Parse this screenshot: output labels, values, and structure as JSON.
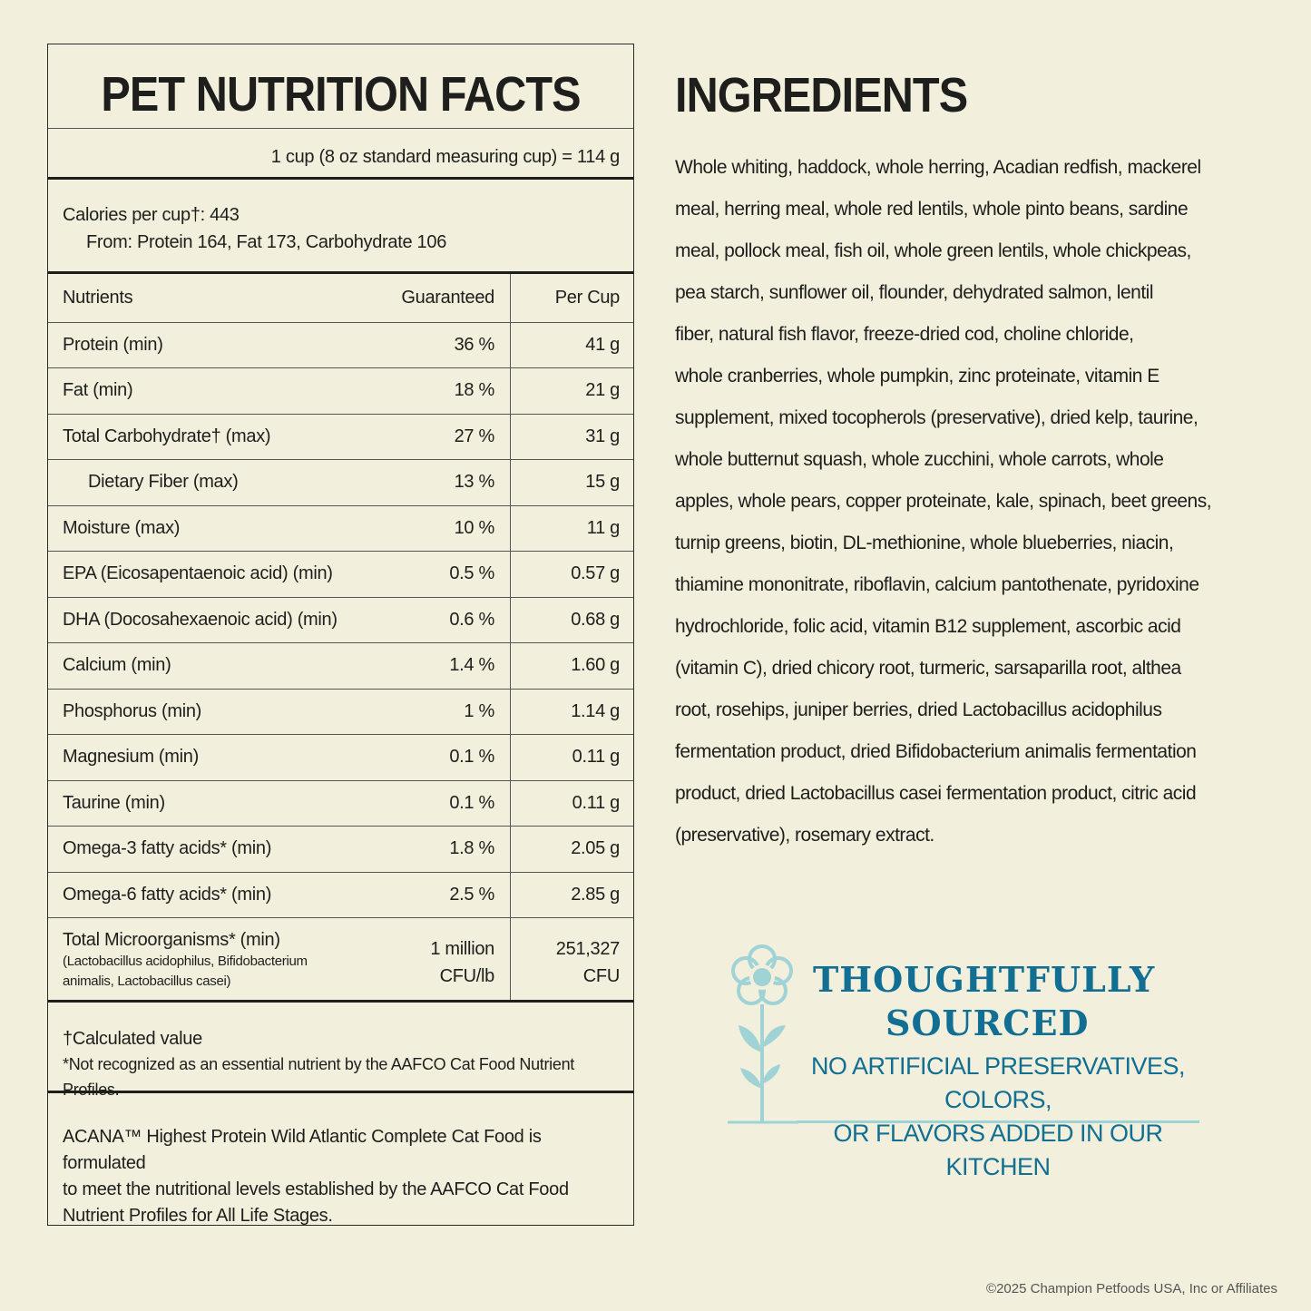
{
  "nutrition": {
    "title": "PET NUTRITION FACTS",
    "serving": "1 cup (8 oz standard measuring cup) = 114 g",
    "calories": "Calories per cup†:  443",
    "calories_from": "From: Protein 164, Fat 173, Carbohydrate 106",
    "headers": {
      "nutrient": "Nutrients",
      "guaranteed": "Guaranteed",
      "per_cup": "Per Cup"
    },
    "rows": [
      {
        "name": "Protein (min)",
        "guaranteed": "36 %",
        "per_cup": "41 g"
      },
      {
        "name": "Fat (min)",
        "guaranteed": "18 %",
        "per_cup": "21 g"
      },
      {
        "name": "Total Carbohydrate† (max)",
        "guaranteed": "27 %",
        "per_cup": "31 g"
      },
      {
        "name": "Dietary Fiber (max)",
        "guaranteed": "13 %",
        "per_cup": "15 g",
        "indent": true
      },
      {
        "name": "Moisture (max)",
        "guaranteed": "10 %",
        "per_cup": "11 g"
      },
      {
        "name": "EPA (Eicosapentaenoic acid) (min)",
        "guaranteed": "0.5 %",
        "per_cup": "0.57 g"
      },
      {
        "name": "DHA (Docosahexaenoic acid) (min)",
        "guaranteed": "0.6 %",
        "per_cup": "0.68 g"
      },
      {
        "name": "Calcium (min)",
        "guaranteed": "1.4 %",
        "per_cup": "1.60 g"
      },
      {
        "name": "Phosphorus (min)",
        "guaranteed": "1 %",
        "per_cup": "1.14 g"
      },
      {
        "name": "Magnesium (min)",
        "guaranteed": "0.1 %",
        "per_cup": "0.11 g"
      },
      {
        "name": "Taurine (min)",
        "guaranteed": "0.1 %",
        "per_cup": "0.11 g"
      },
      {
        "name": "Omega-3 fatty acids* (min)",
        "guaranteed": "1.8 %",
        "per_cup": "2.05 g"
      },
      {
        "name": "Omega-6 fatty acids* (min)",
        "guaranteed": "2.5 %",
        "per_cup": "2.85 g"
      }
    ],
    "micro": {
      "name": "Total Microorganisms* (min)",
      "sub1": "(Lactobacillus acidophilus, Bifidobacterium",
      "sub2": "animalis, Lactobacillus casei)",
      "guaranteed1": "1 million",
      "guaranteed2": "CFU/lb",
      "per_cup1": "251,327",
      "per_cup2": "CFU"
    },
    "footnote1": "†Calculated value",
    "footnote2": "*Not recognized as an essential nutrient by the AAFCO Cat Food Nutrient Profiles.",
    "statement": [
      "ACANA™ Highest Protein Wild Atlantic Complete Cat Food is formulated",
      "to meet the nutritional levels established by the AAFCO Cat Food",
      "Nutrient Profiles for All Life Stages."
    ]
  },
  "ingredients": {
    "title": "INGREDIENTS",
    "lines": [
      "Whole whiting, haddock, whole herring, Acadian redfish, mackerel",
      "meal, herring meal, whole red lentils, whole pinto beans, sardine",
      "meal, pollock meal, fish oil, whole green lentils, whole chickpeas,",
      "pea starch, sunflower oil, flounder, dehydrated salmon, lentil",
      "fiber, natural fish flavor, freeze-dried cod, choline chloride,",
      "whole cranberries, whole pumpkin, zinc proteinate, vitamin E",
      "supplement, mixed tocopherols (preservative), dried kelp, taurine,",
      "whole butternut squash, whole zucchini, whole carrots, whole",
      "apples, whole pears, copper proteinate, kale, spinach, beet greens,",
      "turnip greens, biotin, DL-methionine, whole blueberries, niacin,",
      "thiamine mononitrate, riboflavin, calcium pantothenate, pyridoxine",
      "hydrochloride, folic acid, vitamin B12 supplement, ascorbic acid",
      "(vitamin C), dried chicory root, turmeric, sarsaparilla root, althea",
      "root, rosehips, juniper berries, dried Lactobacillus acidophilus",
      "fermentation product, dried Bifidobacterium animalis fermentation",
      "product, dried Lactobacillus casei fermentation product, citric acid",
      "(preservative), rosemary extract."
    ]
  },
  "badge": {
    "line1": "THOUGHTFULLY",
    "line2": "SOURCED",
    "line3": "NO ARTIFICIAL PRESERVATIVES, COLORS,",
    "line4": "OR FLAVORS ADDED IN OUR KITCHEN",
    "icon": "flower-icon",
    "colors": {
      "text": "#116f93",
      "icon": "#9fd3d6"
    }
  },
  "copyright": "©2025 Champion Petfoods USA, Inc or Affiliates"
}
